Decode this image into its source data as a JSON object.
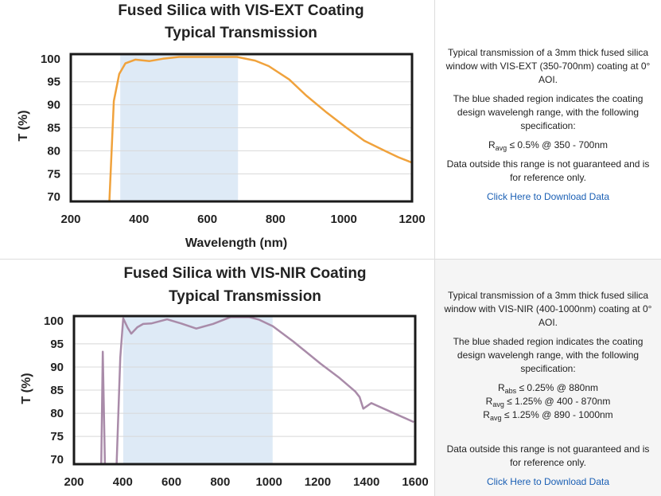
{
  "chart_data": [
    {
      "type": "line",
      "title": [
        "Fused Silica with VIS-EXT Coating",
        "Typical Transmission"
      ],
      "xlabel": "Wavelength (nm)",
      "ylabel": "T (%)",
      "xlim": [
        200,
        1200
      ],
      "ylim": [
        70,
        100
      ],
      "xticks": [
        "200",
        "400",
        "600",
        "800",
        "1000",
        "1200"
      ],
      "yticks": [
        "100",
        "95",
        "90",
        "85",
        "80",
        "75",
        "70"
      ],
      "grid": true,
      "line_color": "#f0a23c",
      "shade_color": "#deeaf6",
      "shaded_range": [
        345,
        690
      ],
      "x": [
        313,
        326,
        342,
        360,
        389,
        431,
        470,
        517,
        600,
        687,
        740,
        780,
        840,
        890,
        950,
        1006,
        1060,
        1123,
        1160,
        1198
      ],
      "y": [
        69,
        90.8,
        96.7,
        99.0,
        99.8,
        99.5,
        100.0,
        100.4,
        100.4,
        100.4,
        99.6,
        98.4,
        95.5,
        92.0,
        88.3,
        85.1,
        82.2,
        79.9,
        78.6,
        77.5
      ]
    },
    {
      "type": "line",
      "title": [
        "Fused Silica with VIS-NIR Coating",
        "Typical Transmission"
      ],
      "xlabel": "",
      "ylabel": "T (%)",
      "xlim": [
        200,
        1600
      ],
      "ylim": [
        70,
        100
      ],
      "xticks": [
        "200",
        "400",
        "600",
        "800",
        "1000",
        "1200",
        "1400",
        "1600"
      ],
      "yticks": [
        "100",
        "95",
        "90",
        "85",
        "80",
        "75",
        "70"
      ],
      "grid": true,
      "line_color": "#a98ba9",
      "shade_color": "#deeaf6",
      "shaded_range": [
        402,
        1015
      ],
      "x": [
        312,
        318,
        327,
        null,
        375,
        390,
        402,
        420,
        435,
        460,
        484,
        517,
        582,
        640,
        702,
        770,
        843,
        918,
        960,
        1016,
        1100,
        1212,
        1290,
        1354,
        1372,
        1387,
        1420,
        1500,
        1594
      ],
      "y": [
        69,
        93.3,
        69,
        null,
        69,
        92,
        100.5,
        98.5,
        97.2,
        98.6,
        99.3,
        99.4,
        100.3,
        99.4,
        98.3,
        99.3,
        100.8,
        100.8,
        100.2,
        98.8,
        95.5,
        90.7,
        87.6,
        84.7,
        83.5,
        81.0,
        82.2,
        80.3,
        78.1
      ]
    }
  ],
  "info": [
    {
      "description": "Typical transmission of a 3mm thick fused silica window with VIS-EXT (350-700nm) coating at 0° AOI.",
      "shading_note": "The blue shaded region indicates the coating design wavelengh range, with the following specification:",
      "specs": [
        {
          "symbol": "R",
          "sub": "avg",
          "text": "≤ 0.5% @ 350 - 700nm"
        }
      ],
      "disclaimer": "Data outside this range is not guaranteed and is for reference only.",
      "download_link": "Click Here to Download Data"
    },
    {
      "description": "Typical transmission of a 3mm thick fused silica window with VIS-NIR (400-1000nm) coating at 0° AOI.",
      "shading_note": "The blue shaded region indicates the coating design wavelengh range, with the following specification:",
      "specs": [
        {
          "symbol": "R",
          "sub": "abs",
          "text": "≤ 0.25% @ 880nm"
        },
        {
          "symbol": "R",
          "sub": "avg",
          "text": "≤ 1.25% @ 400 - 870nm"
        },
        {
          "symbol": "R",
          "sub": "avg",
          "text": "≤ 1.25% @ 890 - 1000nm"
        }
      ],
      "disclaimer": "Data outside this range is not guaranteed and is for reference only.",
      "download_link": "Click Here to Download Data"
    }
  ]
}
